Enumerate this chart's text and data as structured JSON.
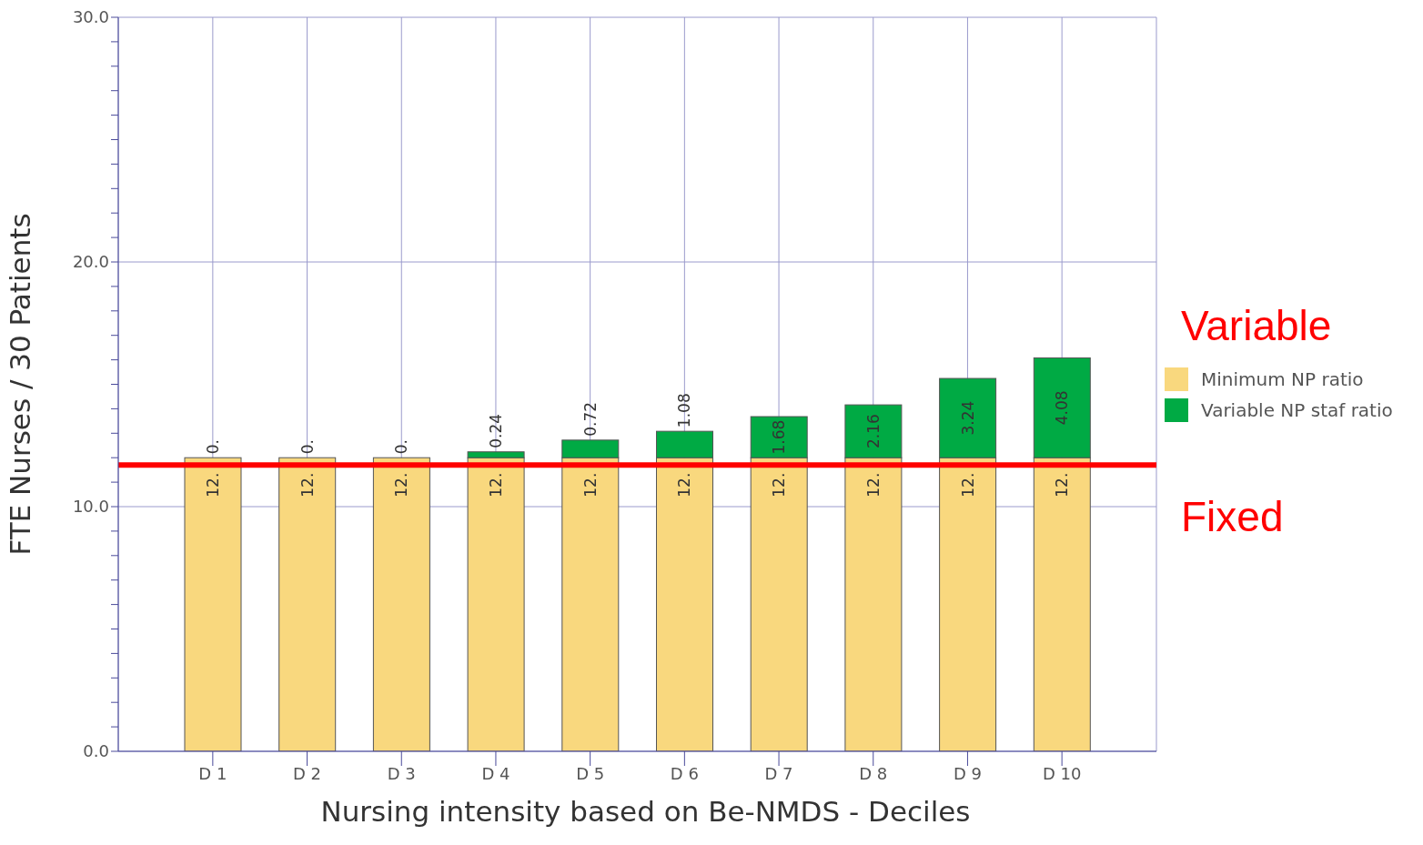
{
  "chart_data": {
    "type": "bar",
    "stacked": true,
    "xlabel": "Nursing intensity based on Be-NMDS - Deciles",
    "ylabel": "FTE Nurses / 30 Patients",
    "categories": [
      "D 1",
      "D 2",
      "D 3",
      "D 4",
      "D 5",
      "D 6",
      "D 7",
      "D 8",
      "D 9",
      "D 10"
    ],
    "series": [
      {
        "name": "Minimum NP ratio",
        "color": "#f9d87e",
        "values": [
          12,
          12,
          12,
          12,
          12,
          12,
          12,
          12,
          12,
          12
        ],
        "value_labels": [
          "12.",
          "12.",
          "12.",
          "12.",
          "12.",
          "12.",
          "12.",
          "12.",
          "12.",
          "12."
        ]
      },
      {
        "name": "Variable NP staf ratio",
        "color": "#00aa44",
        "values": [
          0,
          0,
          0,
          0.24,
          0.72,
          1.08,
          1.68,
          2.16,
          3.24,
          4.08
        ],
        "value_labels": [
          "0.",
          "0.",
          "0.",
          "0.24",
          "0.72",
          "1.08",
          "1.68",
          "2.16",
          "3.24",
          "4.08"
        ]
      }
    ],
    "ylim": [
      0,
      30
    ],
    "yticks": [
      {
        "value": 0,
        "label": "0.0"
      },
      {
        "value": 1,
        "label": null
      },
      {
        "value": 2,
        "label": null
      },
      {
        "value": 3,
        "label": null
      },
      {
        "value": 4,
        "label": null
      },
      {
        "value": 5,
        "label": null
      },
      {
        "value": 6,
        "label": null
      },
      {
        "value": 7,
        "label": null
      },
      {
        "value": 8,
        "label": null
      },
      {
        "value": 9,
        "label": null
      },
      {
        "value": 10,
        "label": "10.0"
      },
      {
        "value": 11,
        "label": null
      },
      {
        "value": 12,
        "label": null
      },
      {
        "value": 13,
        "label": null
      },
      {
        "value": 14,
        "label": null
      },
      {
        "value": 15,
        "label": null
      },
      {
        "value": 16,
        "label": null
      },
      {
        "value": 17,
        "label": null
      },
      {
        "value": 18,
        "label": null
      },
      {
        "value": 19,
        "label": null
      },
      {
        "value": 20,
        "label": "20.0"
      },
      {
        "value": 21,
        "label": null
      },
      {
        "value": 22,
        "label": null
      },
      {
        "value": 23,
        "label": null
      },
      {
        "value": 24,
        "label": null
      },
      {
        "value": 25,
        "label": null
      },
      {
        "value": 26,
        "label": null
      },
      {
        "value": 27,
        "label": null
      },
      {
        "value": 28,
        "label": null
      },
      {
        "value": 29,
        "label": null
      },
      {
        "value": 30,
        "label": "30.0"
      }
    ],
    "grid": true,
    "legend": "right",
    "ref_lines": [
      {
        "axis": "y",
        "value": 11.7,
        "color": "#ff0000"
      }
    ],
    "annotations": [
      "Variable",
      "Fixed"
    ]
  }
}
